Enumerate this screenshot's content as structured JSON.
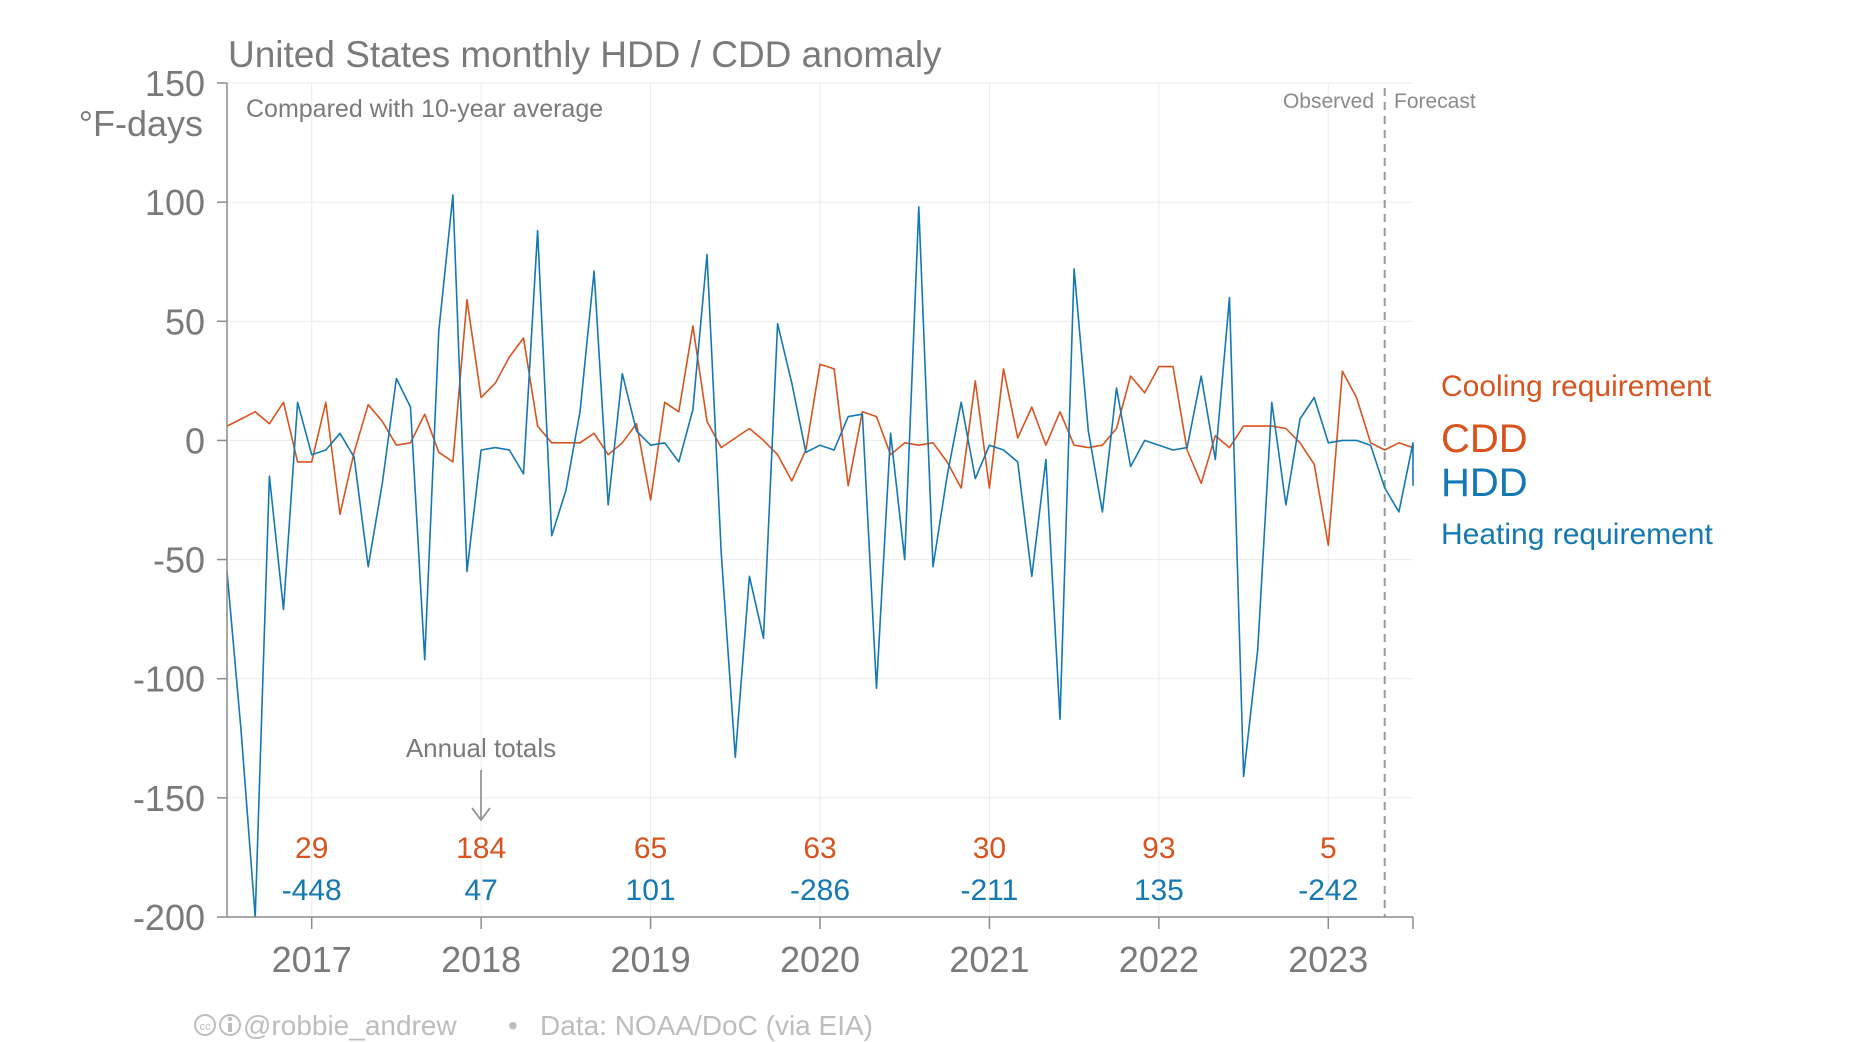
{
  "chart_data": {
    "type": "line",
    "title": "United States monthly HDD / CDD anomaly",
    "subtitle": "Compared with 10-year average",
    "ylabel": "°F-days",
    "ylim": [
      -200,
      150
    ],
    "yticks": [
      150,
      100,
      50,
      0,
      -50,
      -100,
      -150,
      -200
    ],
    "xlim": [
      2016.5,
      2023.5
    ],
    "year_labels": [
      "2017",
      "2018",
      "2019",
      "2020",
      "2021",
      "2022",
      "2023"
    ],
    "grid": true,
    "observed_label": "Observed",
    "forecast_label": "Forecast",
    "forecast_start": 2023.333,
    "series": [
      {
        "name": "CDD",
        "legend_title": "CDD",
        "legend_desc": "Cooling requirement",
        "color": "#d9531e",
        "start": 2016.5,
        "values": [
          6,
          9,
          12,
          7,
          16,
          -9,
          -9,
          16,
          -31,
          -5,
          15,
          8,
          -2,
          -1,
          11,
          -5,
          -9,
          59,
          18,
          24,
          35,
          43,
          6,
          -1,
          -1,
          -1,
          3,
          -6,
          -1,
          7,
          -25,
          16,
          12,
          48,
          8,
          -3,
          1,
          5,
          0,
          -6,
          -17,
          -4,
          32,
          30,
          -19,
          12,
          10,
          -6,
          -1,
          -2,
          -1,
          -9,
          -20,
          25,
          -20,
          30,
          1,
          14,
          -2,
          12,
          -2,
          -3,
          -2,
          5,
          27,
          20,
          31,
          31,
          -4,
          -18,
          2,
          -3,
          6,
          6,
          6,
          5,
          -1,
          -10,
          -44,
          29,
          18,
          -1,
          -4,
          -1,
          -3,
          -2
        ]
      },
      {
        "name": "HDD",
        "legend_title": "HDD",
        "legend_desc": "Heating requirement",
        "color": "#1478b4",
        "start": 2016.5,
        "values": [
          -55,
          -122,
          -200,
          -15,
          -71,
          16,
          -6,
          -4,
          3,
          -7,
          -53,
          -18,
          26,
          14,
          -92,
          46,
          103,
          -55,
          -4,
          -3,
          -4,
          -14,
          88,
          -40,
          -21,
          12,
          71,
          -27,
          28,
          4,
          -2,
          -1,
          -9,
          13,
          78,
          -47,
          -133,
          -57,
          -83,
          49,
          24,
          -5,
          -2,
          -4,
          10,
          11,
          -104,
          3,
          -50,
          98,
          -53,
          -15,
          16,
          -16,
          -2,
          -4,
          -9,
          -57,
          -8,
          -117,
          72,
          4,
          -30,
          22,
          -11,
          0,
          -2,
          -4,
          -3,
          27,
          -8,
          60,
          -141,
          -88,
          16,
          -27,
          9,
          18,
          -1,
          0,
          0,
          -2,
          -20,
          -30,
          -1,
          -19
        ]
      }
    ],
    "annual_totals_label": "Annual totals",
    "annual_totals": {
      "years": [
        "2017",
        "2018",
        "2019",
        "2020",
        "2021",
        "2022",
        "2023"
      ],
      "cdd": [
        "29",
        "184",
        "65",
        "63",
        "30",
        "93",
        "5"
      ],
      "hdd": [
        "-448",
        "47",
        "101",
        "-286",
        "-211",
        "135",
        "-242"
      ]
    }
  },
  "footer": {
    "handle": "@robbie_andrew",
    "bullet": "•",
    "source": "Data: NOAA/DoC (via EIA)",
    "license_icon": "creative-commons-by-icon"
  }
}
